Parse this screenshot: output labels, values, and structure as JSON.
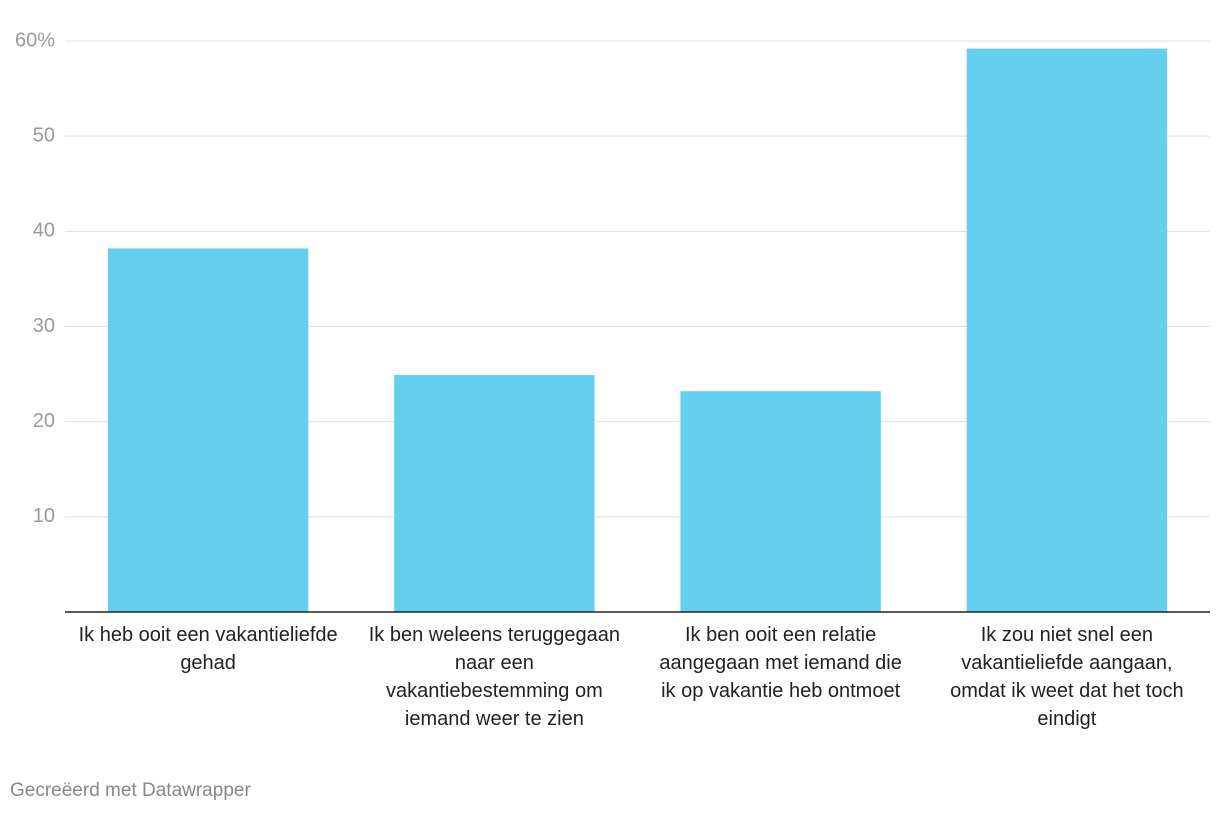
{
  "chart_data": {
    "type": "bar",
    "categories": [
      "Ik heb ooit een vakantieliefde gehad",
      "Ik ben weleens teruggegaan naar een vakantiebestemming om iemand weer te zien",
      "Ik ben ooit een relatie aangegaan met iemand die ik op vakantie heb ontmoet",
      "Ik zou niet snel een vakantieliefde aangaan, omdat ik weet dat het toch eindigt"
    ],
    "values": [
      38.2,
      24.9,
      23.2,
      59.2
    ],
    "color": "#64cfee",
    "ylim": [
      0,
      60
    ],
    "yticks": [
      10,
      20,
      30,
      40,
      50,
      {
        "value": 60,
        "label": "60%"
      }
    ],
    "grid": true,
    "credit": "Gecreëerd met Datawrapper"
  }
}
